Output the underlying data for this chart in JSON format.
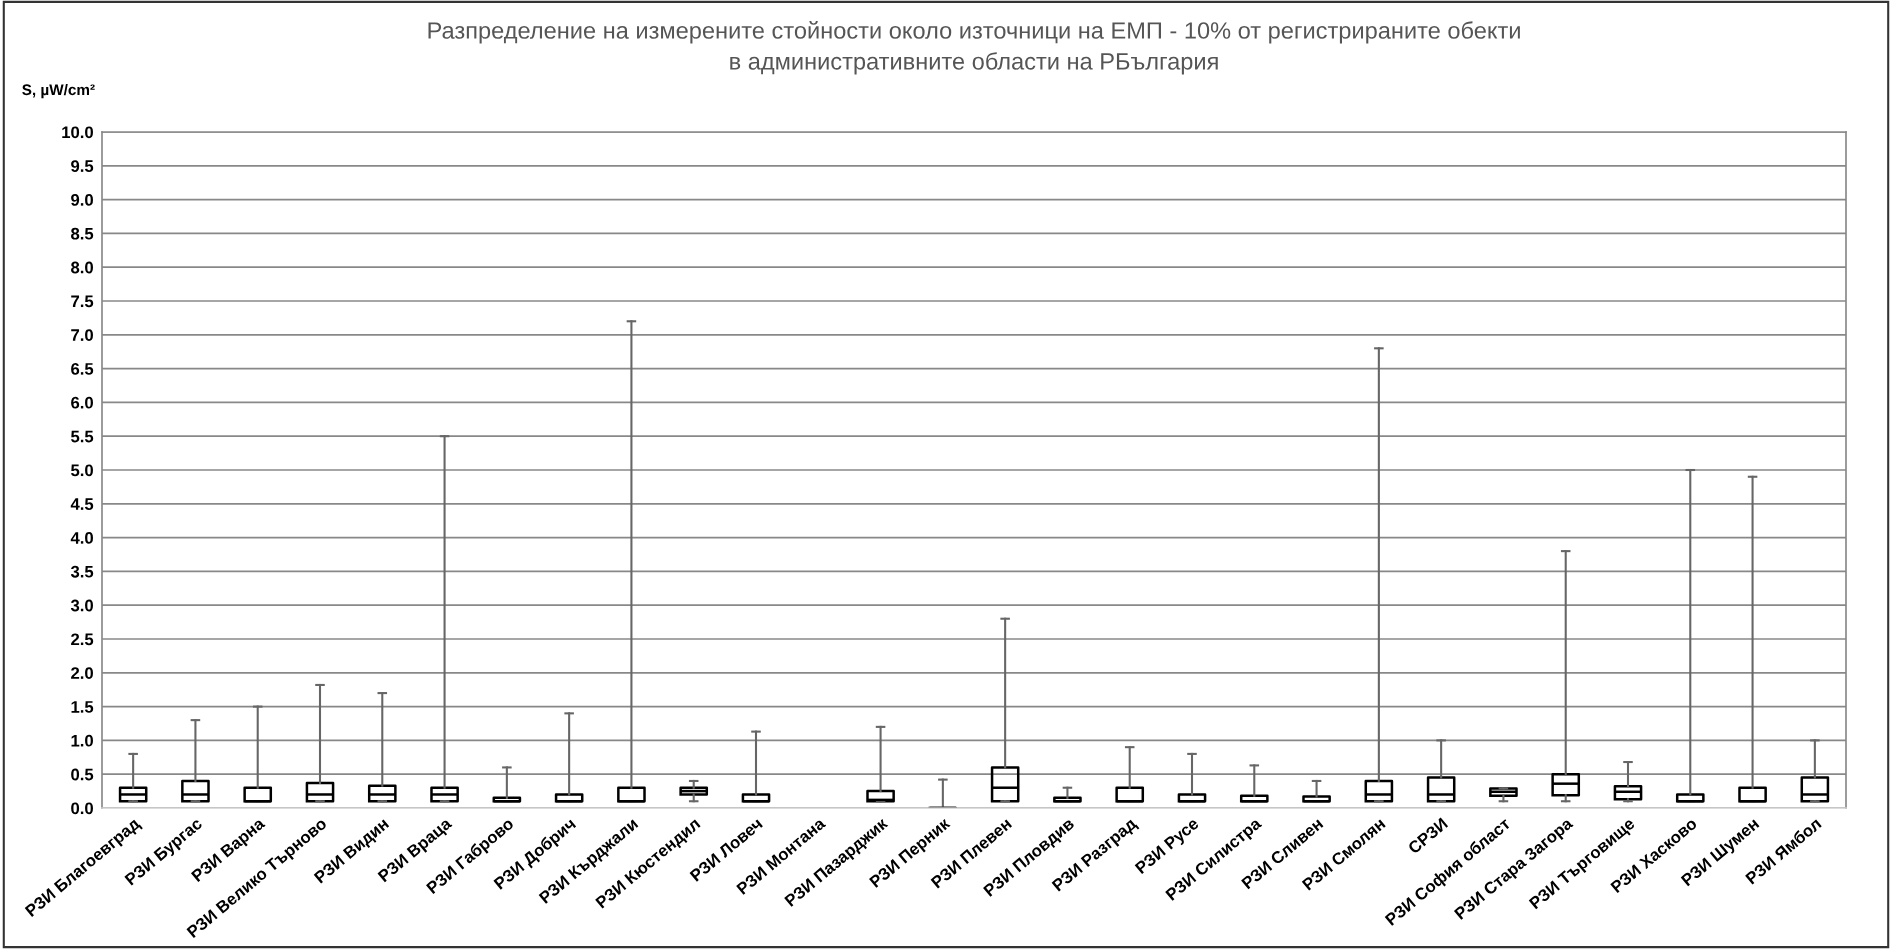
{
  "chart_data": {
    "type": "box",
    "title": "Разпределение на измерените стойности около източници на ЕМП - 10% от регистрираните обекти\nв административните области на РБългария",
    "ylabel": "S, µW/cm²",
    "categories": [
      "РЗИ Благоевград",
      "РЗИ Бургас",
      "РЗИ Варна",
      "РЗИ Велико Търново",
      "РЗИ Видин",
      "РЗИ Враца",
      "РЗИ Габрово",
      "РЗИ Добрич",
      "РЗИ Кърджали",
      "РЗИ Кюстендил",
      "РЗИ Ловеч",
      "РЗИ Монтана",
      "РЗИ Пазарджик",
      "РЗИ Перник",
      "РЗИ Плевен",
      "РЗИ Пловдив",
      "РЗИ Разград",
      "РЗИ Русе",
      "РЗИ Силистра",
      "РЗИ Сливен",
      "РЗИ Смолян",
      "СРЗИ",
      "РЗИ София област",
      "РЗИ Стара Загора",
      "РЗИ Търговище",
      "РЗИ Хасково",
      "РЗИ Шумен",
      "РЗИ Ямбол"
    ],
    "boxes": [
      {
        "low": 0.1,
        "q1": 0.1,
        "median": 0.2,
        "q3": 0.3,
        "high": 0.8
      },
      {
        "low": 0.1,
        "q1": 0.1,
        "median": 0.2,
        "q3": 0.4,
        "high": 1.3
      },
      {
        "low": 0.1,
        "q1": 0.1,
        "median": 0.1,
        "q3": 0.3,
        "high": 1.5
      },
      {
        "low": 0.1,
        "q1": 0.1,
        "median": 0.2,
        "q3": 0.37,
        "high": 1.82
      },
      {
        "low": 0.1,
        "q1": 0.1,
        "median": 0.2,
        "q3": 0.33,
        "high": 1.7
      },
      {
        "low": 0.1,
        "q1": 0.1,
        "median": 0.2,
        "q3": 0.3,
        "high": 5.5
      },
      {
        "low": 0.1,
        "q1": 0.1,
        "median": 0.1,
        "q3": 0.15,
        "high": 0.6
      },
      {
        "low": 0.1,
        "q1": 0.1,
        "median": 0.1,
        "q3": 0.2,
        "high": 1.4
      },
      {
        "low": 0.1,
        "q1": 0.1,
        "median": 0.1,
        "q3": 0.3,
        "high": 7.2
      },
      {
        "low": 0.1,
        "q1": 0.2,
        "median": 0.25,
        "q3": 0.3,
        "high": 0.4
      },
      {
        "low": 0.1,
        "q1": 0.1,
        "median": 0.1,
        "q3": 0.2,
        "high": 1.13
      },
      null,
      {
        "low": 0.1,
        "q1": 0.1,
        "median": 0.12,
        "q3": 0.25,
        "high": 1.2
      },
      {
        "low": 0.0,
        "q1": 0.0,
        "median": 0.0,
        "q3": 0.0,
        "high": 0.42
      },
      {
        "low": 0.1,
        "q1": 0.1,
        "median": 0.3,
        "q3": 0.6,
        "high": 2.8
      },
      {
        "low": 0.1,
        "q1": 0.1,
        "median": 0.1,
        "q3": 0.15,
        "high": 0.3
      },
      {
        "low": 0.1,
        "q1": 0.1,
        "median": 0.1,
        "q3": 0.3,
        "high": 0.9
      },
      {
        "low": 0.1,
        "q1": 0.1,
        "median": 0.1,
        "q3": 0.2,
        "high": 0.8
      },
      {
        "low": 0.1,
        "q1": 0.1,
        "median": 0.1,
        "q3": 0.18,
        "high": 0.63
      },
      {
        "low": 0.1,
        "q1": 0.1,
        "median": 0.1,
        "q3": 0.17,
        "high": 0.4
      },
      {
        "low": 0.1,
        "q1": 0.1,
        "median": 0.2,
        "q3": 0.4,
        "high": 6.8
      },
      {
        "low": 0.1,
        "q1": 0.1,
        "median": 0.2,
        "q3": 0.45,
        "high": 1.0
      },
      {
        "low": 0.1,
        "q1": 0.18,
        "median": 0.24,
        "q3": 0.29,
        "high": 0.29
      },
      {
        "low": 0.1,
        "q1": 0.19,
        "median": 0.36,
        "q3": 0.5,
        "high": 3.8
      },
      {
        "low": 0.1,
        "q1": 0.13,
        "median": 0.24,
        "q3": 0.32,
        "high": 0.68
      },
      {
        "low": 0.1,
        "q1": 0.1,
        "median": 0.1,
        "q3": 0.2,
        "high": 5.0
      },
      {
        "low": 0.1,
        "q1": 0.1,
        "median": 0.1,
        "q3": 0.3,
        "high": 4.9
      },
      {
        "low": 0.1,
        "q1": 0.1,
        "median": 0.2,
        "q3": 0.45,
        "high": 1.0
      }
    ],
    "ylim": [
      0,
      10
    ],
    "yticks": [
      {
        "value": 0,
        "label": "0.0"
      },
      {
        "value": 0.5,
        "label": "0.5"
      },
      {
        "value": 1,
        "label": "1.0"
      },
      {
        "value": 1.5,
        "label": "1.5"
      },
      {
        "value": 2,
        "label": "2.0"
      },
      {
        "value": 2.5,
        "label": "2.5"
      },
      {
        "value": 3,
        "label": "3.0"
      },
      {
        "value": 3.5,
        "label": "3.5"
      },
      {
        "value": 4,
        "label": "4.0"
      },
      {
        "value": 4.5,
        "label": "4.5"
      },
      {
        "value": 5,
        "label": "5.0"
      },
      {
        "value": 5.5,
        "label": "5.5"
      },
      {
        "value": 6,
        "label": "6.0"
      },
      {
        "value": 6.5,
        "label": "6.5"
      },
      {
        "value": 7,
        "label": "7.0"
      },
      {
        "value": 7.5,
        "label": "7.5"
      },
      {
        "value": 8,
        "label": "8.0"
      },
      {
        "value": 8.5,
        "label": "8.5"
      },
      {
        "value": 9,
        "label": "9.0"
      },
      {
        "value": 9.5,
        "label": "9.5"
      },
      {
        "value": 10,
        "label": "10.0"
      }
    ],
    "grid": "y"
  }
}
